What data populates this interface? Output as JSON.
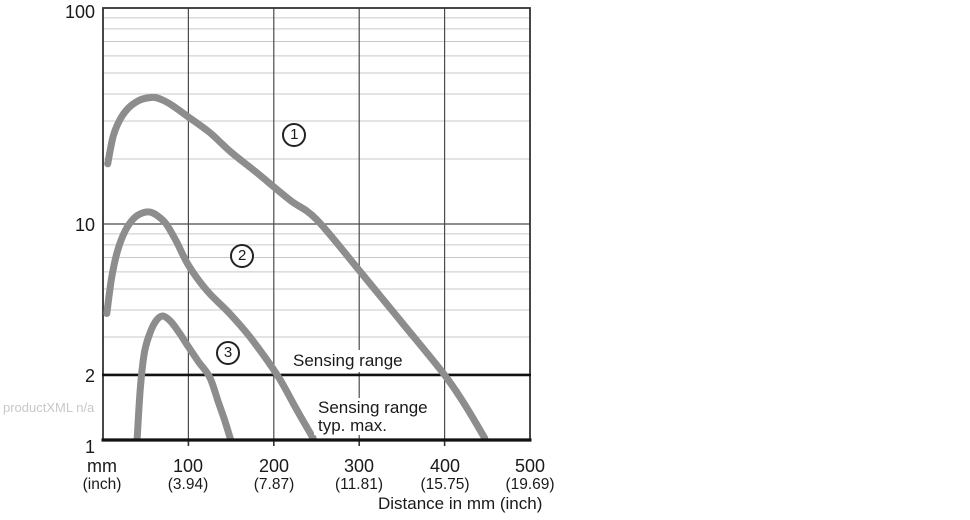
{
  "watermark": "productXML n/a",
  "colors": {
    "curve": "#8d8d8d",
    "grid_minor": "#c9c9c9",
    "grid_major": "#4b4b4b",
    "frame": "#333333",
    "axis_black": "#111111",
    "text": "#1a1a1a",
    "watermark": "#c8c8c8"
  },
  "chart_data": {
    "type": "line",
    "title": "",
    "xlabel": "Distance in mm (inch)",
    "ylabel": "",
    "x_range_mm": [
      0,
      500
    ],
    "y_range": [
      1,
      100
    ],
    "y_scale": "log",
    "grid": true,
    "y_tick_labels": [
      "100",
      "10",
      "2",
      "1"
    ],
    "x_gridlines_mm": [
      100,
      200,
      300,
      400
    ],
    "x_ticks": [
      {
        "mm": "mm",
        "inch": "(inch)"
      },
      {
        "mm": "100",
        "inch": "(3.94)"
      },
      {
        "mm": "200",
        "inch": "(7.87)"
      },
      {
        "mm": "300",
        "inch": "(11.81)"
      },
      {
        "mm": "400",
        "inch": "(15.75)"
      },
      {
        "mm": "500",
        "inch": "(19.69)"
      }
    ],
    "threshold": {
      "value": 2,
      "line_label": "Sensing range",
      "below_label_line1": "Sensing range",
      "below_label_line2": "typ. max."
    },
    "series": [
      {
        "label": "1",
        "label_pos_mm_value": [
          224,
          25.8
        ],
        "points_mm_value": [
          [
            5.5,
            19
          ],
          [
            12,
            25.5
          ],
          [
            20,
            30.5
          ],
          [
            30,
            34.5
          ],
          [
            42,
            37.3
          ],
          [
            52,
            38.3
          ],
          [
            61,
            38.5
          ],
          [
            71,
            37.3
          ],
          [
            82,
            35.2
          ],
          [
            100,
            31.3
          ],
          [
            125,
            26.5
          ],
          [
            150,
            21.5
          ],
          [
            180,
            17.3
          ],
          [
            219,
            12.9
          ],
          [
            250,
            10.5
          ],
          [
            300,
            6.1
          ],
          [
            350,
            3.5
          ],
          [
            400,
            2.0
          ],
          [
            424,
            1.45
          ],
          [
            447,
            1.02
          ]
        ]
      },
      {
        "label": "2",
        "label_pos_mm_value": [
          163,
          7.1
        ],
        "points_mm_value": [
          [
            4.5,
            3.85
          ],
          [
            10,
            5.6
          ],
          [
            17,
            7.5
          ],
          [
            26,
            9.3
          ],
          [
            36,
            10.6
          ],
          [
            46,
            11.25
          ],
          [
            55,
            11.35
          ],
          [
            64,
            10.9
          ],
          [
            74,
            10.0
          ],
          [
            86,
            8.3
          ],
          [
            100,
            6.45
          ],
          [
            122,
            4.9
          ],
          [
            147,
            3.9
          ],
          [
            172,
            3.0
          ],
          [
            204,
            2.0
          ],
          [
            226,
            1.4
          ],
          [
            246,
            1.02
          ]
        ]
      },
      {
        "label": "3",
        "label_pos_mm_value": [
          146.4,
          2.53
        ],
        "points_mm_value": [
          [
            40,
            1.02
          ],
          [
            44,
            1.8
          ],
          [
            49,
            2.6
          ],
          [
            56,
            3.2
          ],
          [
            63,
            3.6
          ],
          [
            70,
            3.75
          ],
          [
            79,
            3.55
          ],
          [
            89,
            3.15
          ],
          [
            100,
            2.7
          ],
          [
            112,
            2.3
          ],
          [
            125,
            1.95
          ],
          [
            135,
            1.5
          ],
          [
            142,
            1.25
          ],
          [
            149,
            1.02
          ]
        ]
      }
    ]
  }
}
